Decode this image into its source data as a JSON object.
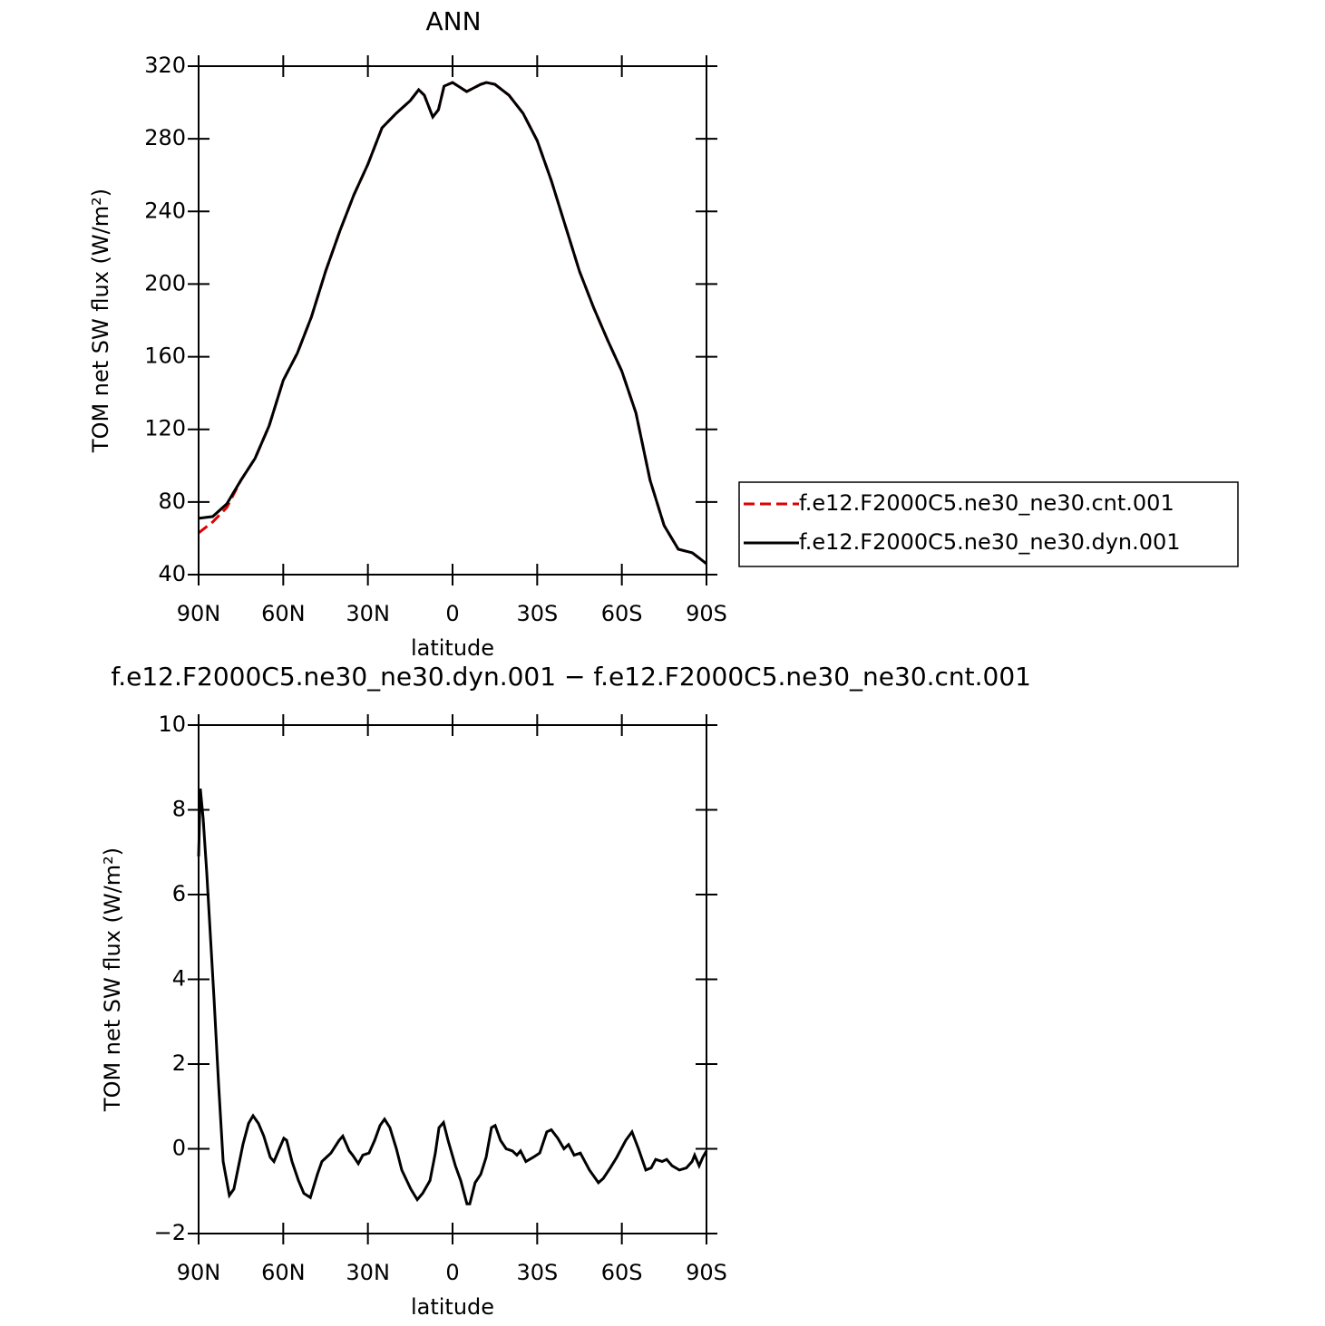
{
  "chart_data": [
    {
      "type": "line",
      "title": "ANN",
      "xlabel": "latitude",
      "ylabel": "TOM net SW flux (W/m²)",
      "x": [
        90,
        85,
        80,
        75,
        70,
        65,
        60,
        55,
        50,
        45,
        40,
        35,
        30,
        25,
        20,
        15,
        12,
        10,
        7,
        5,
        3,
        0,
        -5,
        -10,
        -12,
        -15,
        -20,
        -25,
        -30,
        -35,
        -40,
        -45,
        -50,
        -55,
        -60,
        -65,
        -70,
        -75,
        -80,
        -85,
        -90
      ],
      "series": [
        {
          "name": "f.e12.F2000C5.ne30_ne30.cnt.001",
          "color": "#e00000",
          "style": "dashed",
          "values": [
            63,
            69,
            77,
            92,
            104,
            122,
            147,
            162,
            182,
            207,
            229,
            249,
            266,
            286,
            294,
            301,
            307,
            304,
            292,
            296,
            309,
            311,
            306,
            310,
            311,
            310,
            304,
            294,
            279,
            257,
            232,
            207,
            187,
            169,
            152,
            129,
            92,
            67,
            54,
            52,
            46
          ]
        },
        {
          "name": "f.e12.F2000C5.ne30_ne30.dyn.001",
          "color": "#000000",
          "style": "solid",
          "values": [
            71,
            72,
            79,
            92,
            104,
            122,
            147,
            162,
            182,
            207,
            229,
            249,
            266,
            286,
            294,
            301,
            307,
            304,
            292,
            296,
            309,
            311,
            306,
            310,
            311,
            310,
            304,
            294,
            279,
            257,
            232,
            207,
            187,
            169,
            152,
            129,
            92,
            67,
            54,
            52,
            46
          ]
        }
      ],
      "xlim": [
        90,
        -90
      ],
      "xticks": [
        {
          "value": 90,
          "label": "90N"
        },
        {
          "value": 60,
          "label": "60N"
        },
        {
          "value": 30,
          "label": "30N"
        },
        0,
        {
          "value": -30,
          "label": "30S"
        },
        {
          "value": -60,
          "label": "60S"
        },
        {
          "value": -90,
          "label": "90S"
        }
      ],
      "ylim": [
        40,
        320
      ],
      "yticks": [
        40,
        80,
        120,
        160,
        200,
        240,
        280,
        320
      ],
      "legend": "outside-right"
    },
    {
      "type": "line",
      "title": "f.e12.F2000C5.ne30_ne30.dyn.001 − f.e12.F2000C5.ne30_ne30.cnt.001",
      "xlabel": "latitude",
      "ylabel": "TOM net SW flux (W/m²)",
      "x": [
        90,
        89.4,
        88.4,
        87.1,
        84.5,
        82.9,
        81.3,
        79.1,
        77.5,
        75.2,
        74.3,
        72.3,
        70.7,
        68.8,
        66.9,
        64.6,
        63.3,
        61.4,
        59.8,
        58.8,
        56.9,
        54.6,
        52.7,
        50.4,
        47.9,
        46.3,
        44.7,
        43.1,
        40.2,
        38.9,
        36.6,
        35.4,
        33.4,
        31.8,
        29.6,
        27.6,
        25.7,
        24.1,
        22.2,
        19.9,
        18.0,
        14.8,
        12.5,
        10.6,
        8.0,
        6.1,
        4.8,
        3.2,
        1.6,
        -1.0,
        -2.9,
        -5.1,
        -6.1,
        -8.0,
        -10.0,
        -11.9,
        -13.8,
        -15.1,
        -17.0,
        -19.0,
        -21.2,
        -22.8,
        -24.1,
        -26.0,
        -28.6,
        -30.9,
        -33.4,
        -35.0,
        -37.3,
        -39.5,
        -41.1,
        -43.1,
        -45.3,
        -48.5,
        -51.7,
        -53.4,
        -55.9,
        -58.2,
        -61.4,
        -63.6,
        -65.9,
        -68.5,
        -70.4,
        -72.0,
        -74.3,
        -75.9,
        -77.8,
        -80.4,
        -82.9,
        -84.9,
        -85.8,
        -87.4,
        -88.7,
        -90
      ],
      "series": [
        {
          "name": "f.e12.F2000C5.ne30_ne30.dyn.001 − f.e12.F2000C5.ne30_ne30.cnt.001",
          "color": "#000000",
          "style": "solid",
          "values": [
            6.9,
            8.5,
            7.8,
            6.5,
            3.5,
            1.5,
            -0.3,
            -1.1,
            -0.95,
            -0.2,
            0.1,
            0.6,
            0.78,
            0.6,
            0.3,
            -0.2,
            -0.3,
            0.0,
            0.25,
            0.2,
            -0.3,
            -0.75,
            -1.05,
            -1.15,
            -0.6,
            -0.3,
            -0.2,
            -0.1,
            0.2,
            0.3,
            -0.05,
            -0.15,
            -0.35,
            -0.15,
            -0.1,
            0.2,
            0.55,
            0.7,
            0.5,
            0.0,
            -0.5,
            -0.95,
            -1.2,
            -1.05,
            -0.75,
            -0.1,
            0.5,
            0.62,
            0.2,
            -0.4,
            -0.75,
            -1.3,
            -1.3,
            -0.8,
            -0.6,
            -0.2,
            0.5,
            0.55,
            0.2,
            0.0,
            -0.05,
            -0.15,
            -0.05,
            -0.3,
            -0.2,
            -0.1,
            0.4,
            0.45,
            0.25,
            0.0,
            0.1,
            -0.15,
            -0.1,
            -0.5,
            -0.8,
            -0.7,
            -0.45,
            -0.2,
            0.2,
            0.4,
            0.0,
            -0.5,
            -0.45,
            -0.25,
            -0.3,
            -0.25,
            -0.4,
            -0.5,
            -0.45,
            -0.3,
            -0.15,
            -0.4,
            -0.2,
            -0.05
          ]
        }
      ],
      "xlim": [
        90,
        -90
      ],
      "xticks": [
        {
          "value": 90,
          "label": "90N"
        },
        {
          "value": 60,
          "label": "60N"
        },
        {
          "value": 30,
          "label": "30N"
        },
        0,
        {
          "value": -30,
          "label": "30S"
        },
        {
          "value": -60,
          "label": "60S"
        },
        {
          "value": -90,
          "label": "90S"
        }
      ],
      "ylim": [
        -2,
        10
      ],
      "yticks": [
        {
          "value": -2,
          "label": "−2"
        },
        0,
        2,
        4,
        6,
        8,
        10
      ]
    }
  ]
}
